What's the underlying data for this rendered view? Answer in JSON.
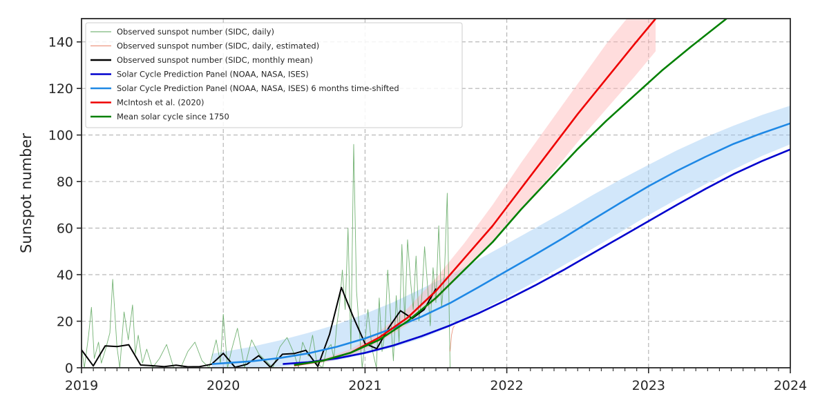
{
  "chart_data": {
    "type": "line",
    "ylabel": "Sunspot number",
    "xlim": [
      2019.0,
      2024.0
    ],
    "ylim": [
      0,
      150
    ],
    "x_ticks": [
      2019,
      2020,
      2021,
      2022,
      2023,
      2024
    ],
    "x_tick_labels": [
      "2019",
      "2020",
      "2021",
      "2022",
      "2023",
      "2024"
    ],
    "y_ticks": [
      0,
      20,
      40,
      60,
      80,
      100,
      120,
      140
    ],
    "y_tick_labels": [
      "0",
      "20",
      "40",
      "60",
      "80",
      "100",
      "120",
      "140"
    ],
    "grid": true,
    "legend_position": "top-left",
    "series": [
      {
        "name": "Observed sunspot number (SIDC, daily)",
        "color": "#5aa55a",
        "style": "thin",
        "x": [
          2019.0,
          2019.02,
          2019.05,
          2019.07,
          2019.09,
          2019.12,
          2019.14,
          2019.17,
          2019.2,
          2019.22,
          2019.25,
          2019.27,
          2019.3,
          2019.33,
          2019.36,
          2019.38,
          2019.4,
          2019.43,
          2019.46,
          2019.5,
          2019.55,
          2019.6,
          2019.65,
          2019.7,
          2019.75,
          2019.8,
          2019.85,
          2019.9,
          2019.95,
          2019.98,
          2020.0,
          2020.03,
          2020.06,
          2020.1,
          2020.15,
          2020.2,
          2020.25,
          2020.3,
          2020.35,
          2020.4,
          2020.45,
          2020.5,
          2020.53,
          2020.56,
          2020.6,
          2020.63,
          2020.66,
          2020.7,
          2020.73,
          2020.76,
          2020.78,
          2020.8,
          2020.82,
          2020.84,
          2020.86,
          2020.88,
          2020.9,
          2020.92,
          2020.94,
          2020.96,
          2020.98,
          2021.0,
          2021.02,
          2021.05,
          2021.08,
          2021.1,
          2021.12,
          2021.14,
          2021.16,
          2021.18,
          2021.2,
          2021.22,
          2021.24,
          2021.26,
          2021.28,
          2021.3,
          2021.32,
          2021.34,
          2021.36,
          2021.38,
          2021.4,
          2021.42,
          2021.44,
          2021.46,
          2021.48,
          2021.5,
          2021.52,
          2021.54,
          2021.56,
          2021.58,
          2021.6
        ],
        "y": [
          9,
          0,
          14,
          26,
          4,
          11,
          2,
          8,
          15,
          38,
          9,
          0,
          24,
          12,
          27,
          6,
          14,
          2,
          8,
          0,
          4,
          10,
          0,
          0,
          7,
          11,
          3,
          0,
          12,
          2,
          23,
          0,
          8,
          17,
          0,
          12,
          6,
          3,
          0,
          9,
          13,
          6,
          0,
          11,
          5,
          14,
          2,
          0,
          8,
          10,
          4,
          18,
          27,
          42,
          25,
          60,
          8,
          96,
          33,
          16,
          0,
          11,
          25,
          8,
          0,
          30,
          7,
          15,
          42,
          22,
          3,
          31,
          11,
          53,
          20,
          55,
          38,
          25,
          48,
          20,
          30,
          52,
          36,
          18,
          43,
          28,
          61,
          26,
          40,
          75,
          0
        ]
      },
      {
        "name": "Observed sunspot number (SIDC, daily, estimated)",
        "color": "#e8846a",
        "style": "thin",
        "x": [
          2021.6,
          2021.61,
          2021.62,
          2021.63
        ],
        "y": [
          7,
          14,
          17,
          18
        ]
      },
      {
        "name": "Observed sunspot number (SIDC, monthly mean)",
        "color": "#000000",
        "style": "medium",
        "x": [
          2019.0,
          2019.083,
          2019.167,
          2019.25,
          2019.333,
          2019.417,
          2019.5,
          2019.583,
          2019.667,
          2019.75,
          2019.833,
          2019.917,
          2020.0,
          2020.083,
          2020.167,
          2020.25,
          2020.333,
          2020.417,
          2020.5,
          2020.583,
          2020.667,
          2020.75,
          2020.833,
          2020.917,
          2021.0,
          2021.083,
          2021.167,
          2021.25,
          2021.333,
          2021.417,
          2021.5
        ],
        "y": [
          7.7,
          0.8,
          9.4,
          9.1,
          9.9,
          1.2,
          0.9,
          0.5,
          1.1,
          0.4,
          0.5,
          1.5,
          6.2,
          0.2,
          1.5,
          5.2,
          0.2,
          5.8,
          6.1,
          7.5,
          0.6,
          14.4,
          34.5,
          21.8,
          10.4,
          8.2,
          17.2,
          24.5,
          21.2,
          25.0,
          34.0
        ]
      },
      {
        "name": "Solar Cycle Prediction Panel (NOAA, NASA, ISES)",
        "color": "#0000cd",
        "style": "thick",
        "x": [
          2020.42,
          2020.6,
          2020.8,
          2021.0,
          2021.2,
          2021.4,
          2021.6,
          2021.8,
          2022.0,
          2022.2,
          2022.4,
          2022.6,
          2022.8,
          2023.0,
          2023.2,
          2023.4,
          2023.6,
          2023.8,
          2024.0
        ],
        "y": [
          1.6,
          2.4,
          4.0,
          6.4,
          9.6,
          13.6,
          18.2,
          23.4,
          29.2,
          35.4,
          42.0,
          49.0,
          56.0,
          63.0,
          70.0,
          76.8,
          83.2,
          88.8,
          93.8
        ]
      },
      {
        "name": "Solar Cycle Prediction Panel (NOAA, NASA, ISES) 6 months time-shifted",
        "color": "#1e88e5",
        "style": "thick",
        "x": [
          2019.92,
          2020.2,
          2020.4,
          2020.6,
          2020.8,
          2021.0,
          2021.2,
          2021.4,
          2021.6,
          2021.8,
          2022.0,
          2022.2,
          2022.4,
          2022.6,
          2022.8,
          2023.0,
          2023.2,
          2023.4,
          2023.6,
          2023.8,
          2024.0
        ],
        "y": [
          1.6,
          2.8,
          4.2,
          6.2,
          9.0,
          12.6,
          17.0,
          22.0,
          27.8,
          34.6,
          41.6,
          48.6,
          55.8,
          63.4,
          70.8,
          78.0,
          84.6,
          90.6,
          96.2,
          100.8,
          105.0
        ],
        "band_upper": [
          6.0,
          9.0,
          11.8,
          15.0,
          18.6,
          23.2,
          28.2,
          34.0,
          40.0,
          46.5,
          53.2,
          60.0,
          66.8,
          74.0,
          80.8,
          87.2,
          93.4,
          99.0,
          104.0,
          108.6,
          112.6
        ],
        "band_lower": [
          0.0,
          0.0,
          0.5,
          1.5,
          3.2,
          5.8,
          8.8,
          12.6,
          17.6,
          24.0,
          30.4,
          37.0,
          44.0,
          51.0,
          58.2,
          65.6,
          72.4,
          78.8,
          85.2,
          91.0,
          96.0
        ]
      },
      {
        "name": "McIntosh et al. (2020)",
        "color": "#ee0000",
        "style": "thick",
        "x": [
          2020.5,
          2020.7,
          2020.9,
          2021.1,
          2021.3,
          2021.5,
          2021.7,
          2021.9,
          2022.1,
          2022.3,
          2022.5,
          2022.7,
          2022.9,
          2023.05
        ],
        "y": [
          1.0,
          3.0,
          6.5,
          13.0,
          21.5,
          33.0,
          47.0,
          61.0,
          77.0,
          93.0,
          109.0,
          124.0,
          139.0,
          150.0
        ],
        "band_upper": [
          1.4,
          3.8,
          8.0,
          15.5,
          25.5,
          38.5,
          53.5,
          70.0,
          88.0,
          105.0,
          122.0,
          139.0,
          154.0,
          165.0
        ],
        "band_lower": [
          0.6,
          2.2,
          5.0,
          11.0,
          18.5,
          29.0,
          41.5,
          54.0,
          68.0,
          82.0,
          97.0,
          111.0,
          125.0,
          136.0
        ]
      },
      {
        "name": "Mean solar cycle since 1750",
        "color": "#008000",
        "style": "thick",
        "x": [
          2020.5,
          2020.7,
          2020.9,
          2021.1,
          2021.3,
          2021.5,
          2021.7,
          2021.9,
          2022.1,
          2022.3,
          2022.5,
          2022.7,
          2022.9,
          2023.1,
          2023.3,
          2023.55
        ],
        "y": [
          1.2,
          3.0,
          6.5,
          12.0,
          20.0,
          30.0,
          42.0,
          54.0,
          68.0,
          81.0,
          94.0,
          106.0,
          117.0,
          128.0,
          138.0,
          150.0
        ]
      }
    ]
  }
}
